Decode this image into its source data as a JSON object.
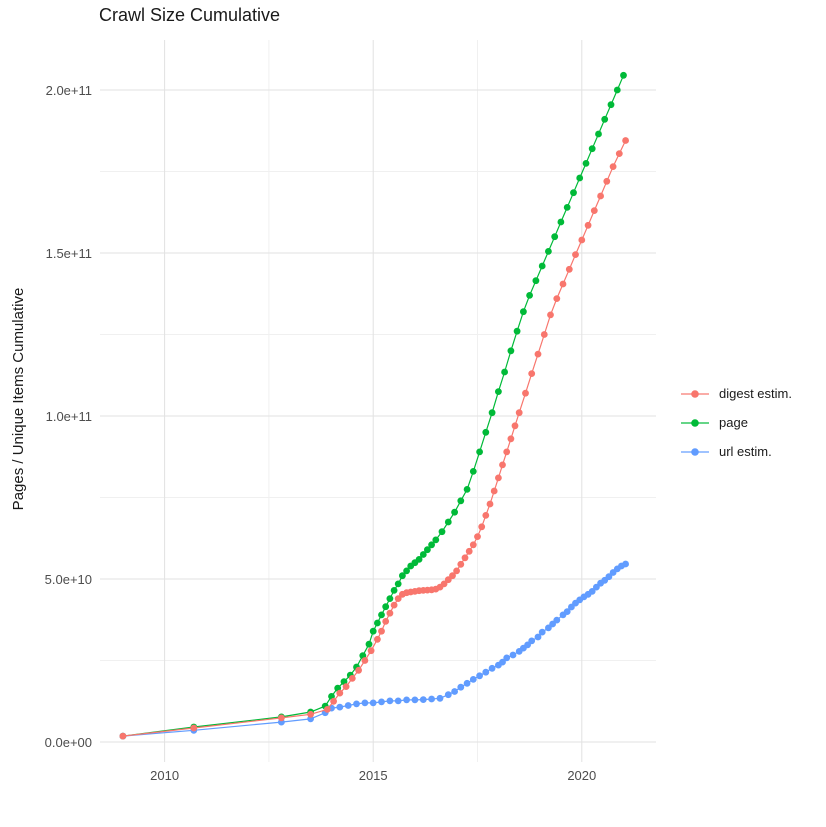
{
  "chart_data": {
    "type": "scatter",
    "title": "Crawl Size Cumulative",
    "xlabel": "",
    "ylabel": "Pages / Unique Items Cumulative",
    "legend_position": "right",
    "grid": "on",
    "x_axis": {
      "range": [
        2008.4,
        2021.8
      ],
      "major_ticks": [
        {
          "label": "2010",
          "value": 2010
        },
        {
          "label": "2015",
          "value": 2015
        },
        {
          "label": "2020",
          "value": 2020
        }
      ],
      "minor_gridlines": [
        2012.5,
        2017.5
      ]
    },
    "y_axis": {
      "unit_note": "values stored in billions (1e9); axis labels in scientific notation",
      "range_e9": [
        0,
        215
      ],
      "major_ticks": [
        {
          "label": "0.0e+00",
          "value": 0
        },
        {
          "label": "5.0e+10",
          "value": 50
        },
        {
          "label": "1.0e+11",
          "value": 100
        },
        {
          "label": "1.5e+11",
          "value": 150
        },
        {
          "label": "2.0e+11",
          "value": 200
        }
      ],
      "minor_gridlines": [
        25,
        75,
        125,
        175
      ]
    },
    "series": [
      {
        "name": "page",
        "color": "#00BA38",
        "points": [
          [
            2009.0,
            1.8
          ],
          [
            2010.7,
            4.6
          ],
          [
            2012.8,
            7.7
          ],
          [
            2013.5,
            9.2
          ],
          [
            2013.85,
            11
          ],
          [
            2014.0,
            14
          ],
          [
            2014.15,
            16.5
          ],
          [
            2014.3,
            18.5
          ],
          [
            2014.45,
            20.5
          ],
          [
            2014.6,
            23
          ],
          [
            2014.75,
            26.5
          ],
          [
            2014.9,
            30
          ],
          [
            2015.0,
            34
          ],
          [
            2015.1,
            36.5
          ],
          [
            2015.2,
            39
          ],
          [
            2015.3,
            41.5
          ],
          [
            2015.4,
            44
          ],
          [
            2015.5,
            46.5
          ],
          [
            2015.6,
            48.5
          ],
          [
            2015.7,
            51
          ],
          [
            2015.8,
            52.5
          ],
          [
            2015.9,
            54
          ],
          [
            2016.0,
            55
          ],
          [
            2016.1,
            56
          ],
          [
            2016.2,
            57.5
          ],
          [
            2016.3,
            59
          ],
          [
            2016.4,
            60.5
          ],
          [
            2016.5,
            62
          ],
          [
            2016.65,
            64.5
          ],
          [
            2016.8,
            67.5
          ],
          [
            2016.95,
            70.5
          ],
          [
            2017.1,
            74
          ],
          [
            2017.25,
            77.5
          ],
          [
            2017.4,
            83
          ],
          [
            2017.55,
            89
          ],
          [
            2017.7,
            95
          ],
          [
            2017.85,
            101
          ],
          [
            2018.0,
            107.5
          ],
          [
            2018.15,
            113.5
          ],
          [
            2018.3,
            120
          ],
          [
            2018.45,
            126
          ],
          [
            2018.6,
            132
          ],
          [
            2018.75,
            137
          ],
          [
            2018.9,
            141.5
          ],
          [
            2019.05,
            146
          ],
          [
            2019.2,
            150.5
          ],
          [
            2019.35,
            155
          ],
          [
            2019.5,
            159.5
          ],
          [
            2019.65,
            164
          ],
          [
            2019.8,
            168.5
          ],
          [
            2019.95,
            173
          ],
          [
            2020.1,
            177.5
          ],
          [
            2020.25,
            182
          ],
          [
            2020.4,
            186.5
          ],
          [
            2020.55,
            191
          ],
          [
            2020.7,
            195.5
          ],
          [
            2020.85,
            200
          ],
          [
            2021.0,
            204.5
          ]
        ]
      },
      {
        "name": "url estim.",
        "color": "#619CFF",
        "points": [
          [
            2009.0,
            1.8
          ],
          [
            2010.7,
            3.6
          ],
          [
            2012.8,
            6.1
          ],
          [
            2013.5,
            7.1
          ],
          [
            2013.85,
            9
          ],
          [
            2014.0,
            10.4
          ],
          [
            2014.2,
            10.7
          ],
          [
            2014.4,
            11.2
          ],
          [
            2014.6,
            11.7
          ],
          [
            2014.8,
            12
          ],
          [
            2015.0,
            12
          ],
          [
            2015.2,
            12.3
          ],
          [
            2015.4,
            12.6
          ],
          [
            2015.6,
            12.6
          ],
          [
            2015.8,
            12.9
          ],
          [
            2016.0,
            12.9
          ],
          [
            2016.2,
            13
          ],
          [
            2016.4,
            13.2
          ],
          [
            2016.6,
            13.4
          ],
          [
            2016.8,
            14.5
          ],
          [
            2016.95,
            15.5
          ],
          [
            2017.1,
            16.8
          ],
          [
            2017.25,
            18
          ],
          [
            2017.4,
            19.2
          ],
          [
            2017.55,
            20.3
          ],
          [
            2017.7,
            21.4
          ],
          [
            2017.85,
            22.6
          ],
          [
            2018.0,
            23.6
          ],
          [
            2018.1,
            24.5
          ],
          [
            2018.2,
            25.8
          ],
          [
            2018.35,
            26.7
          ],
          [
            2018.5,
            27.8
          ],
          [
            2018.6,
            28.8
          ],
          [
            2018.7,
            29.8
          ],
          [
            2018.8,
            31
          ],
          [
            2018.95,
            32.2
          ],
          [
            2019.05,
            33.7
          ],
          [
            2019.2,
            35
          ],
          [
            2019.3,
            36.2
          ],
          [
            2019.4,
            37.4
          ],
          [
            2019.55,
            39
          ],
          [
            2019.65,
            40
          ],
          [
            2019.75,
            41.4
          ],
          [
            2019.85,
            42.6
          ],
          [
            2019.95,
            43.6
          ],
          [
            2020.05,
            44.5
          ],
          [
            2020.15,
            45.3
          ],
          [
            2020.25,
            46.2
          ],
          [
            2020.35,
            47.5
          ],
          [
            2020.45,
            48.7
          ],
          [
            2020.55,
            49.6
          ],
          [
            2020.65,
            50.7
          ],
          [
            2020.75,
            52
          ],
          [
            2020.85,
            53.1
          ],
          [
            2020.95,
            54
          ],
          [
            2021.05,
            54.6
          ]
        ]
      },
      {
        "name": "digest estim.",
        "color": "#F8766D",
        "points": [
          [
            2009.0,
            1.8
          ],
          [
            2010.7,
            4.3
          ],
          [
            2012.8,
            7.4
          ],
          [
            2013.5,
            8.5
          ],
          [
            2013.9,
            10
          ],
          [
            2014.05,
            12.5
          ],
          [
            2014.2,
            15
          ],
          [
            2014.35,
            17
          ],
          [
            2014.5,
            19.5
          ],
          [
            2014.65,
            22
          ],
          [
            2014.8,
            25
          ],
          [
            2014.95,
            28
          ],
          [
            2015.1,
            31.5
          ],
          [
            2015.2,
            34
          ],
          [
            2015.3,
            37
          ],
          [
            2015.4,
            39.5
          ],
          [
            2015.5,
            42
          ],
          [
            2015.6,
            44
          ],
          [
            2015.7,
            45.3
          ],
          [
            2015.8,
            45.8
          ],
          [
            2015.9,
            46
          ],
          [
            2016.0,
            46.2
          ],
          [
            2016.1,
            46.4
          ],
          [
            2016.2,
            46.5
          ],
          [
            2016.3,
            46.6
          ],
          [
            2016.4,
            46.7
          ],
          [
            2016.5,
            46.9
          ],
          [
            2016.6,
            47.5
          ],
          [
            2016.7,
            48.5
          ],
          [
            2016.8,
            49.8
          ],
          [
            2016.9,
            51
          ],
          [
            2017.0,
            52.5
          ],
          [
            2017.1,
            54.5
          ],
          [
            2017.2,
            56.5
          ],
          [
            2017.3,
            58.5
          ],
          [
            2017.4,
            60.5
          ],
          [
            2017.5,
            63
          ],
          [
            2017.6,
            66
          ],
          [
            2017.7,
            69.5
          ],
          [
            2017.8,
            73
          ],
          [
            2017.9,
            77
          ],
          [
            2018.0,
            81
          ],
          [
            2018.1,
            85
          ],
          [
            2018.2,
            89
          ],
          [
            2018.3,
            93
          ],
          [
            2018.4,
            97
          ],
          [
            2018.5,
            101
          ],
          [
            2018.65,
            107
          ],
          [
            2018.8,
            113
          ],
          [
            2018.95,
            119
          ],
          [
            2019.1,
            125
          ],
          [
            2019.25,
            131
          ],
          [
            2019.4,
            136
          ],
          [
            2019.55,
            140.5
          ],
          [
            2019.7,
            145
          ],
          [
            2019.85,
            149.5
          ],
          [
            2020.0,
            154
          ],
          [
            2020.15,
            158.5
          ],
          [
            2020.3,
            163
          ],
          [
            2020.45,
            167.5
          ],
          [
            2020.6,
            172
          ],
          [
            2020.75,
            176.5
          ],
          [
            2020.9,
            180.5
          ],
          [
            2021.05,
            184.5
          ]
        ]
      }
    ],
    "legend": {
      "items": [
        {
          "label": "digest estim.",
          "color": "#F8766D"
        },
        {
          "label": "page",
          "color": "#00BA38"
        },
        {
          "label": "url estim.",
          "color": "#619CFF"
        }
      ]
    },
    "style": {
      "major_grid_color": "#E2E2E2",
      "minor_grid_color": "#F0F0F0",
      "tick_label_color": "#4d4d4d",
      "text_color": "#1a1a1a",
      "background": "#ffffff"
    }
  }
}
